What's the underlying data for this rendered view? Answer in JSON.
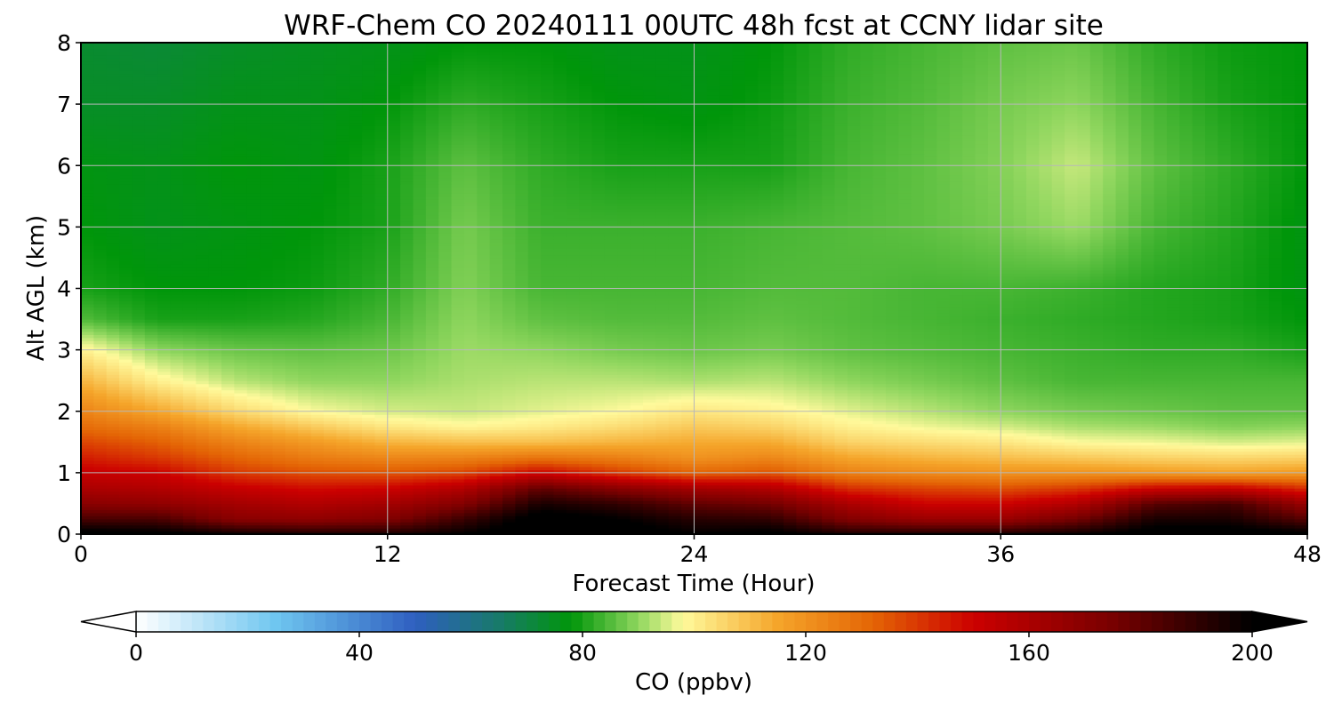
{
  "chart_data": {
    "type": "heatmap",
    "title": "WRF-Chem CO  20240111 00UTC 48h fcst at CCNY lidar site",
    "xlabel": "Forecast Time (Hour)",
    "ylabel": "Alt AGL (km)",
    "xlim": [
      0,
      48
    ],
    "ylim": [
      0,
      8
    ],
    "x_ticks": [
      0,
      12,
      24,
      36,
      48
    ],
    "y_ticks": [
      0,
      1,
      2,
      3,
      4,
      5,
      6,
      7,
      8
    ],
    "grid": true,
    "x": [
      0,
      3,
      6,
      9,
      12,
      15,
      18,
      21,
      24,
      27,
      30,
      33,
      36,
      39,
      42,
      45,
      48
    ],
    "y": [
      0,
      0.25,
      0.5,
      0.75,
      1.0,
      1.25,
      1.5,
      1.75,
      2.0,
      2.5,
      3.0,
      3.5,
      4.0,
      5.0,
      6.0,
      7.0,
      8.0
    ],
    "z": [
      [
        205,
        203,
        198,
        195,
        195,
        200,
        208,
        206,
        200,
        203,
        195,
        195,
        195,
        198,
        205,
        205,
        203
      ],
      [
        185,
        185,
        170,
        168,
        172,
        188,
        205,
        200,
        192,
        190,
        172,
        165,
        165,
        176,
        195,
        195,
        182
      ],
      [
        170,
        168,
        162,
        158,
        162,
        172,
        195,
        190,
        180,
        176,
        160,
        150,
        150,
        158,
        182,
        186,
        165
      ],
      [
        160,
        158,
        152,
        148,
        150,
        158,
        180,
        170,
        162,
        158,
        142,
        138,
        136,
        140,
        150,
        152,
        142
      ],
      [
        152,
        150,
        140,
        136,
        135,
        138,
        150,
        140,
        132,
        135,
        125,
        122,
        120,
        120,
        118,
        116,
        118
      ],
      [
        145,
        140,
        132,
        126,
        123,
        124,
        128,
        125,
        120,
        123,
        115,
        112,
        110,
        108,
        106,
        105,
        106
      ],
      [
        138,
        133,
        124,
        118,
        112,
        110,
        110,
        112,
        114,
        114,
        106,
        104,
        102,
        98,
        97,
        95,
        96
      ],
      [
        130,
        125,
        115,
        108,
        102,
        99,
        101,
        104,
        108,
        106,
        100,
        97,
        95,
        92,
        91,
        89,
        90
      ],
      [
        124,
        115,
        105,
        98,
        95,
        94,
        96,
        98,
        102,
        100,
        96,
        93,
        90,
        88,
        87,
        86,
        86
      ],
      [
        112,
        100,
        93,
        90,
        90,
        92,
        93,
        93,
        92,
        93,
        90,
        88,
        86,
        84,
        84,
        84,
        84
      ],
      [
        100,
        90,
        87,
        86,
        87,
        91,
        90,
        88,
        87,
        88,
        86,
        85,
        84,
        83,
        82,
        82,
        80
      ],
      [
        85,
        80,
        80,
        81,
        84,
        90,
        86,
        85,
        85,
        86,
        85,
        84,
        83,
        82,
        81,
        80,
        78
      ],
      [
        80,
        78,
        78,
        79,
        82,
        89,
        84,
        84,
        84,
        85,
        85,
        84,
        84,
        83,
        81,
        80,
        77
      ],
      [
        78,
        76,
        77,
        78,
        80,
        88,
        83,
        83,
        83,
        84,
        85,
        86,
        88,
        91,
        84,
        81,
        77
      ],
      [
        77,
        76,
        78,
        77,
        80,
        86,
        82,
        80,
        80,
        80,
        84,
        86,
        89,
        94,
        86,
        82,
        78
      ],
      [
        74,
        74,
        76,
        76,
        78,
        82,
        80,
        78,
        77,
        79,
        83,
        85,
        88,
        90,
        84,
        80,
        78
      ],
      [
        73,
        72,
        74,
        75,
        76,
        78,
        78,
        76,
        76,
        78,
        82,
        84,
        86,
        87,
        82,
        79,
        78
      ]
    ],
    "colorbar": {
      "label": "CO  (ppbv)",
      "ticks": [
        0,
        40,
        80,
        120,
        160,
        200
      ],
      "min": 0,
      "max": 200,
      "extend": "both",
      "stops": [
        {
          "v": 0,
          "c": "#ffffff"
        },
        {
          "v": 25,
          "c": "#6fc6f0"
        },
        {
          "v": 50,
          "c": "#2f5fc0"
        },
        {
          "v": 65,
          "c": "#187a6a"
        },
        {
          "v": 78,
          "c": "#00960a"
        },
        {
          "v": 90,
          "c": "#8fd65e"
        },
        {
          "v": 98,
          "c": "#fffa9c"
        },
        {
          "v": 115,
          "c": "#f5a52a"
        },
        {
          "v": 132,
          "c": "#e46505"
        },
        {
          "v": 150,
          "c": "#cc0000"
        },
        {
          "v": 175,
          "c": "#780000"
        },
        {
          "v": 200,
          "c": "#000000"
        }
      ]
    }
  }
}
